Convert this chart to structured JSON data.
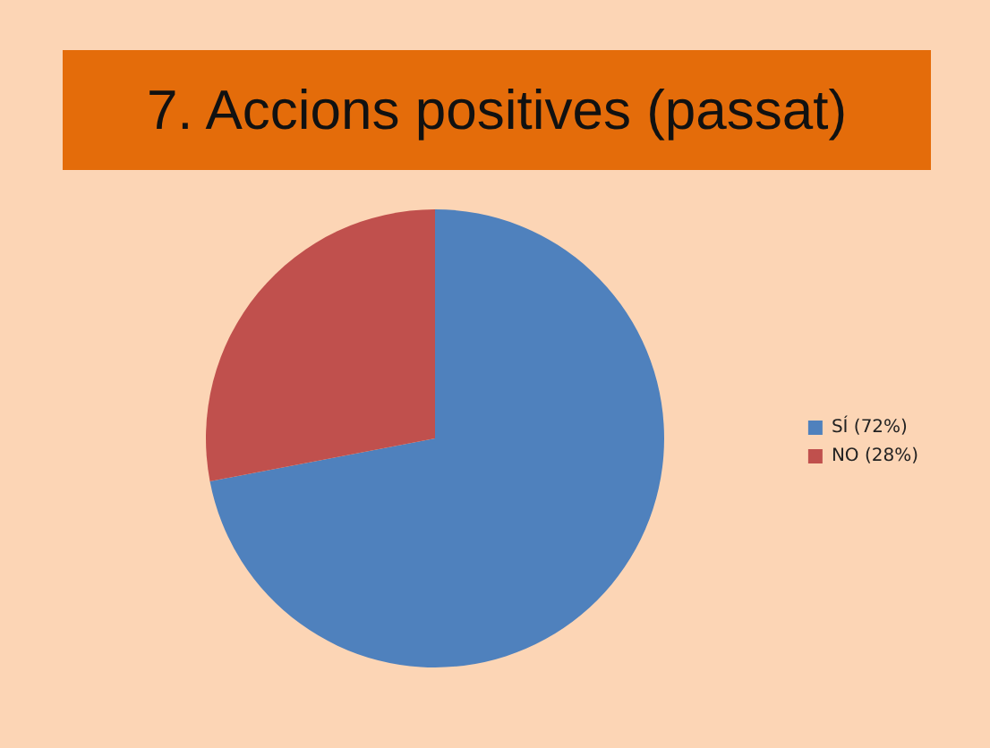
{
  "chart_data": {
    "type": "pie",
    "title": "7. Accions positives (passat)",
    "categories": [
      "SÍ (72%)",
      "NO (28%)"
    ],
    "values": [
      72,
      28
    ],
    "colors": [
      "#4f81bd",
      "#c0504d"
    ],
    "legend": "right"
  }
}
